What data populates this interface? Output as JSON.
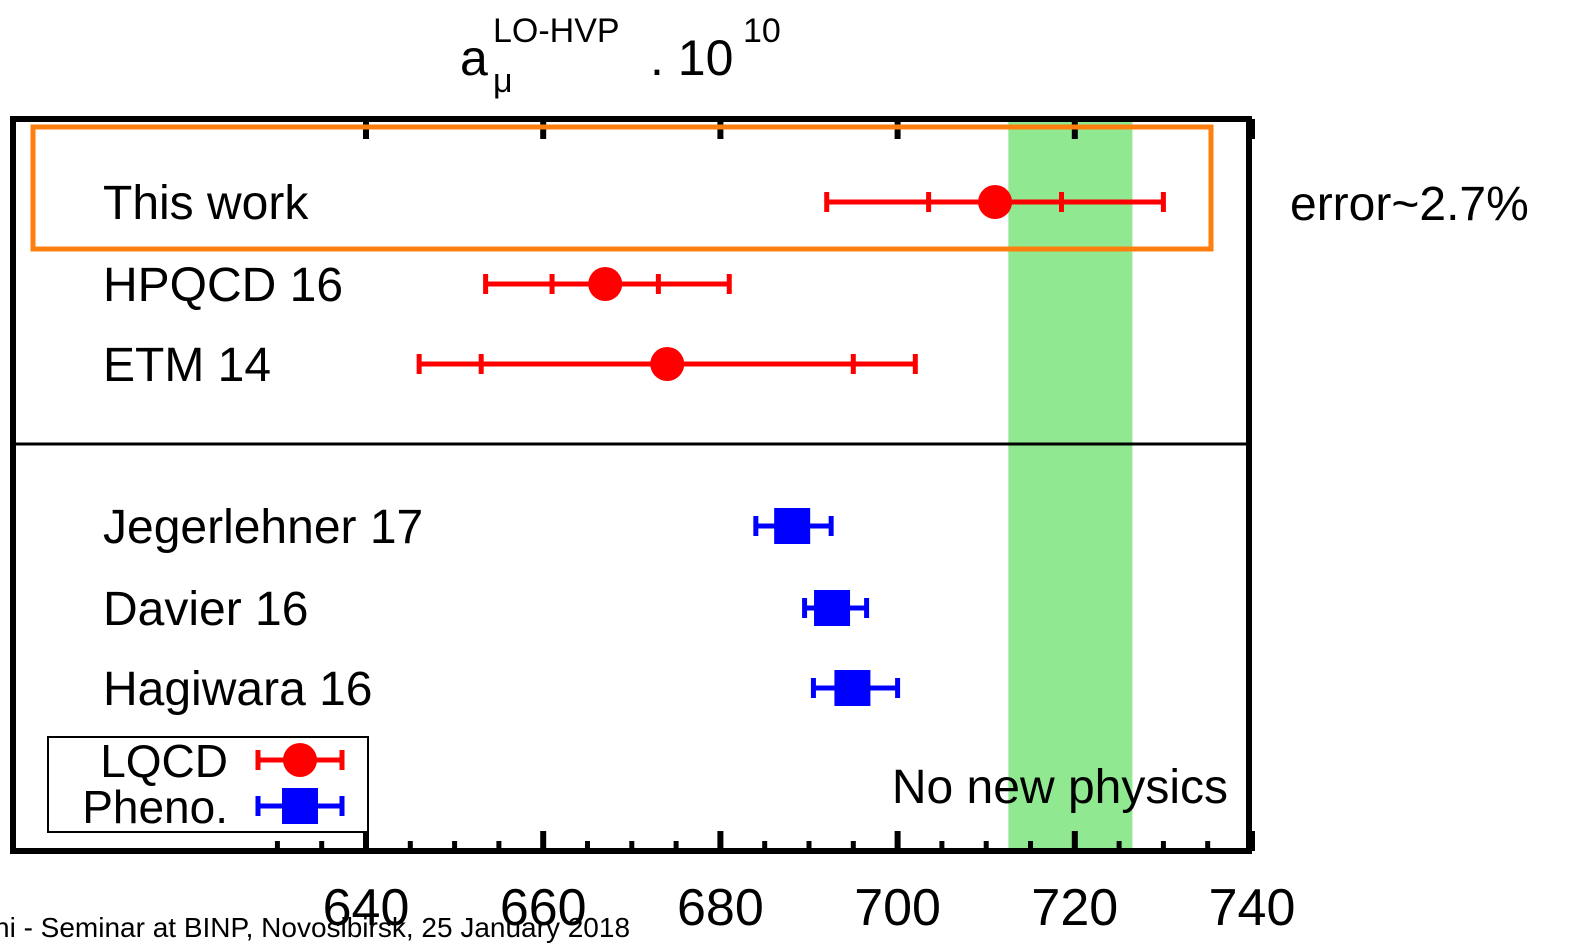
{
  "chart_data": {
    "type": "scatter",
    "title": {
      "base": "a",
      "superscript": "LO-HVP",
      "subscript": "μ",
      "suffix": ". 10",
      "exponent": "10"
    },
    "xlim": [
      620,
      750
    ],
    "x_ticks": [
      640,
      660,
      680,
      700,
      720,
      740
    ],
    "grid": false,
    "band": {
      "from": 712.5,
      "to": 726.5,
      "label": "No new physics",
      "color": "#90e890"
    },
    "series": [
      {
        "name": "LQCD",
        "color": "#ff0000",
        "marker": "circle",
        "points": [
          {
            "label": "This work",
            "value": 711,
            "stat_err": [
              703.5,
              718.5
            ],
            "total_err": [
              692,
              730
            ]
          },
          {
            "label": "HPQCD 16",
            "value": 667,
            "stat_err": [
              661,
              673
            ],
            "total_err": [
              653.5,
              681
            ]
          },
          {
            "label": "ETM 14",
            "value": 674,
            "stat_err": [
              653,
              695
            ],
            "total_err": [
              646,
              702
            ]
          }
        ]
      },
      {
        "name": "Pheno.",
        "color": "#0000ff",
        "marker": "square",
        "points": [
          {
            "label": "Jegerlehner 17",
            "value": 688.1,
            "total_err": [
              684,
              692.5
            ]
          },
          {
            "label": "Davier 16",
            "value": 692.6,
            "total_err": [
              689.5,
              696.5
            ]
          },
          {
            "label": "Hagiwara 16",
            "value": 694.9,
            "total_err": [
              690.5,
              700
            ]
          }
        ]
      }
    ],
    "legend": {
      "position": "bottom-left",
      "entries": [
        "LQCD",
        "Pheno."
      ]
    },
    "highlight": {
      "row": "This work",
      "color": "#ff7f0e"
    },
    "annotation": "error~2.7%"
  },
  "footer": "ni - Seminar at BINP, Novosibirsk, 25 January 2018"
}
